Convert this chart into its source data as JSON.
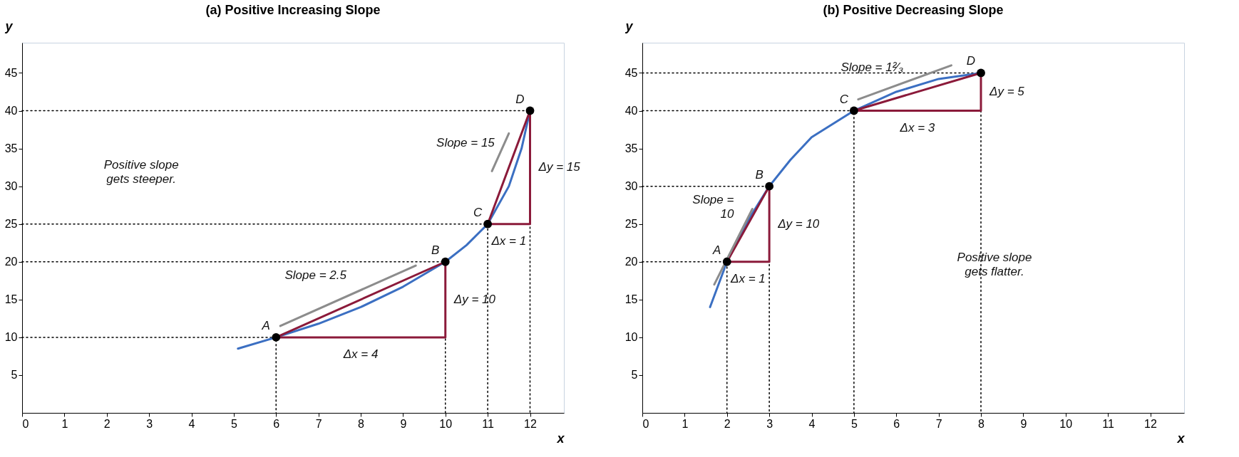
{
  "chart_data": [
    {
      "type": "line",
      "title": "(a) Positive Increasing Slope",
      "xlabel": "x",
      "ylabel": "y",
      "xlim": [
        0,
        12.8
      ],
      "ylim": [
        0,
        49
      ],
      "xticks": [
        0,
        1,
        2,
        3,
        4,
        5,
        6,
        7,
        8,
        9,
        10,
        11,
        12
      ],
      "yticks": [
        5,
        10,
        15,
        20,
        25,
        30,
        35,
        40,
        45
      ],
      "grid": false,
      "legend": false,
      "series": [
        {
          "type": "line",
          "line_style": "dotted",
          "color": "#000000",
          "x": [
            0,
            6,
            6
          ],
          "values": [
            10,
            10,
            0
          ]
        },
        {
          "type": "line",
          "line_style": "dotted",
          "color": "#000000",
          "x": [
            0,
            10,
            10
          ],
          "values": [
            20,
            20,
            0
          ]
        },
        {
          "type": "line",
          "line_style": "dotted",
          "color": "#000000",
          "x": [
            0,
            11,
            11
          ],
          "values": [
            25,
            25,
            0
          ]
        },
        {
          "type": "line",
          "line_style": "dotted",
          "color": "#000000",
          "x": [
            0,
            12,
            12
          ],
          "values": [
            40,
            40,
            0
          ]
        },
        {
          "line_style": "solid",
          "color": "#3b6fc2",
          "x": [
            5.1,
            6,
            7,
            8,
            9,
            10,
            10.5,
            11,
            11.5,
            11.8,
            12
          ],
          "values": [
            8.5,
            10,
            11.8,
            14,
            16.7,
            20,
            22.2,
            25,
            30,
            35,
            40
          ]
        },
        {
          "type": "line",
          "line_style": "solid",
          "color": "#8b1a3a",
          "x": [
            6,
            10,
            10
          ],
          "values": [
            10,
            10,
            20
          ]
        },
        {
          "type": "line",
          "line_style": "solid",
          "color": "#8b1a3a",
          "x": [
            6,
            10
          ],
          "values": [
            10,
            20
          ]
        },
        {
          "type": "line",
          "line_style": "solid",
          "color": "#8b1a3a",
          "x": [
            11,
            12,
            12
          ],
          "values": [
            25,
            25,
            40
          ]
        },
        {
          "type": "line",
          "line_style": "solid",
          "color": "#8b1a3a",
          "x": [
            11,
            12
          ],
          "values": [
            25,
            40
          ]
        },
        {
          "type": "line",
          "line_style": "solid",
          "color": "#8c8c8c",
          "x": [
            6.1,
            9.3
          ],
          "values": [
            11.5,
            19.5
          ]
        },
        {
          "type": "line",
          "line_style": "solid",
          "color": "#8c8c8c",
          "x": [
            11.1,
            11.5
          ],
          "values": [
            32,
            37
          ]
        },
        {
          "type": "scatter",
          "marker": "circle",
          "color": "#000000",
          "x": [
            6,
            10,
            11,
            12
          ],
          "values": [
            10,
            20,
            25,
            40
          ]
        }
      ],
      "annotations": [
        {
          "text": "A",
          "x": 6,
          "y": 10
        },
        {
          "text": "B",
          "x": 10,
          "y": 20
        },
        {
          "text": "C",
          "x": 11,
          "y": 25
        },
        {
          "text": "D",
          "x": 12,
          "y": 40
        },
        {
          "text": "Δy = 15",
          "x": 12,
          "y": 32.5
        },
        {
          "text": "Slope = 15",
          "x": 11.5,
          "y": 32.5
        },
        "Positive slope\ngets steeper.",
        {
          "text": "Slope = 2.5",
          "x": 8,
          "y": 15
        },
        {
          "text": "Δy = 10",
          "x": 10,
          "y": 15
        },
        {
          "text": "Δx = 4",
          "x": 8,
          "y": 10
        },
        {
          "text": "Δx = 1",
          "x": 11.5,
          "y": 25
        }
      ]
    },
    {
      "type": "line",
      "title": "(b) Positive Decreasing Slope",
      "xlabel": "x",
      "ylabel": "y",
      "xlim": [
        0,
        12.8
      ],
      "ylim": [
        0,
        49
      ],
      "xticks": [
        0,
        1,
        2,
        3,
        4,
        5,
        6,
        7,
        8,
        9,
        10,
        11,
        12
      ],
      "yticks": [
        5,
        10,
        15,
        20,
        25,
        30,
        35,
        40,
        45
      ],
      "grid": false,
      "legend": false,
      "series": [
        {
          "type": "line",
          "line_style": "dotted",
          "color": "#000000",
          "x": [
            0,
            2,
            2
          ],
          "values": [
            20,
            20,
            0
          ]
        },
        {
          "type": "line",
          "line_style": "dotted",
          "color": "#000000",
          "x": [
            0,
            3,
            3
          ],
          "values": [
            30,
            30,
            0
          ]
        },
        {
          "type": "line",
          "line_style": "dotted",
          "color": "#000000",
          "x": [
            0,
            5,
            5
          ],
          "values": [
            40,
            40,
            0
          ]
        },
        {
          "type": "line",
          "line_style": "dotted",
          "color": "#000000",
          "x": [
            0,
            8,
            8
          ],
          "values": [
            45,
            45,
            0
          ]
        },
        {
          "line_style": "solid",
          "color": "#3b6fc2",
          "x": [
            1.6,
            2,
            2.5,
            3,
            3.5,
            4,
            5,
            6,
            7,
            8
          ],
          "values": [
            14,
            20,
            25.5,
            30,
            33.5,
            36.5,
            40,
            42.5,
            44.2,
            45
          ]
        },
        {
          "type": "line",
          "line_style": "solid",
          "color": "#8b1a3a",
          "x": [
            2,
            3,
            3
          ],
          "values": [
            20,
            20,
            30
          ]
        },
        {
          "type": "line",
          "line_style": "solid",
          "color": "#8b1a3a",
          "x": [
            2,
            3
          ],
          "values": [
            20,
            30
          ]
        },
        {
          "type": "line",
          "line_style": "solid",
          "color": "#8b1a3a",
          "x": [
            5,
            8,
            8
          ],
          "values": [
            40,
            40,
            45
          ]
        },
        {
          "type": "line",
          "line_style": "solid",
          "color": "#8b1a3a",
          "x": [
            5,
            8
          ],
          "values": [
            40,
            45
          ]
        },
        {
          "type": "line",
          "line_style": "solid",
          "color": "#8c8c8c",
          "x": [
            1.7,
            2.6
          ],
          "values": [
            17,
            27
          ]
        },
        {
          "type": "line",
          "line_style": "solid",
          "color": "#8c8c8c",
          "x": [
            5.1,
            7.3
          ],
          "values": [
            41.5,
            46
          ]
        },
        {
          "type": "scatter",
          "marker": "circle",
          "color": "#000000",
          "x": [
            2,
            3,
            5,
            8
          ],
          "values": [
            20,
            30,
            40,
            45
          ]
        }
      ],
      "annotations": [
        {
          "text": "A",
          "x": 2,
          "y": 20
        },
        {
          "text": "B",
          "x": 3,
          "y": 30
        },
        {
          "text": "C",
          "x": 5,
          "y": 40
        },
        {
          "text": "D",
          "x": 8,
          "y": 45
        },
        {
          "text": "Slope = 1²⁄₃",
          "x": 6.5,
          "y": 42.5
        },
        {
          "text": "Slope =\n10",
          "x": 2.5,
          "y": 25
        },
        {
          "text": "Δy = 10",
          "x": 3,
          "y": 25
        },
        {
          "text": "Δx = 1",
          "x": 2.5,
          "y": 20
        },
        {
          "text": "Δy = 5",
          "x": 8,
          "y": 42.5
        },
        {
          "text": "Δx = 3",
          "x": 6.5,
          "y": 40
        },
        "Positive slope\ngets flatter."
      ]
    }
  ]
}
